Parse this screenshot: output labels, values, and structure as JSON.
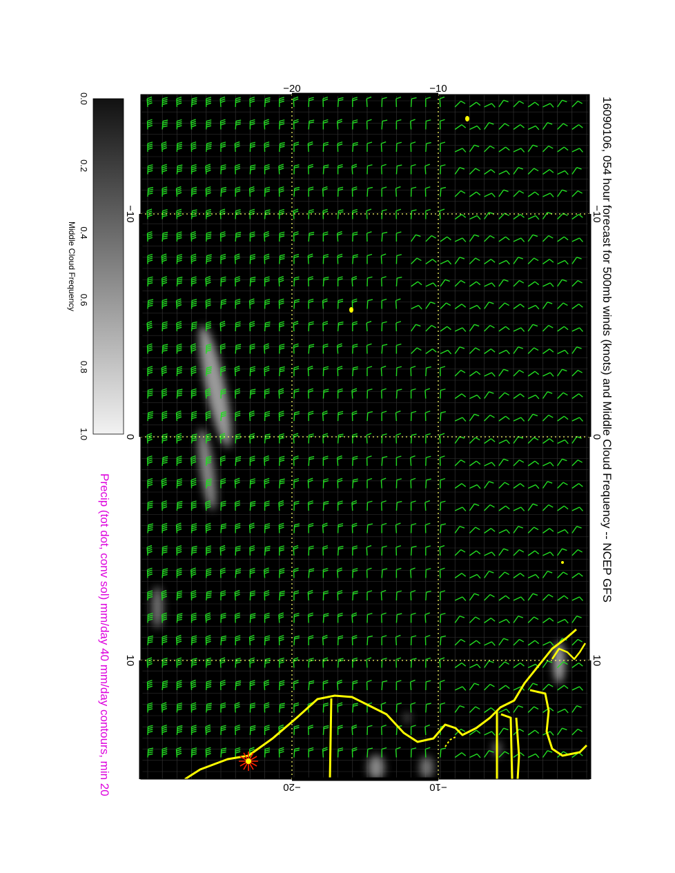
{
  "title": "16090106, 054 hour forecast for 500mb winds (knots) and Middle Cloud Frequency -- NCEP GFS",
  "subtitle": "Precip (tot dot, conv sol) mm/day 40 mm/day contours, min 20",
  "colorbar": {
    "label": "Middle Cloud Frequency",
    "ticks": [
      "0.0",
      "0.2",
      "0.4",
      "0.6",
      "0.8",
      "1.0"
    ],
    "low_color": "#111111",
    "high_color": "#f2f2f2"
  },
  "map": {
    "background_color": "#000000",
    "barb_color": "#22dd22",
    "coast_color": "#ffff00",
    "grid_color": "#ffff66",
    "marker_color": "#ff2200",
    "top_axis_ticks": [
      "−20",
      "−10"
    ],
    "bottom_axis_ticks": [
      "−20",
      "−10"
    ],
    "left_axis_ticks": [
      "−10",
      "0",
      "10"
    ],
    "right_axis_ticks": [
      "−10",
      "0",
      "10"
    ]
  }
}
